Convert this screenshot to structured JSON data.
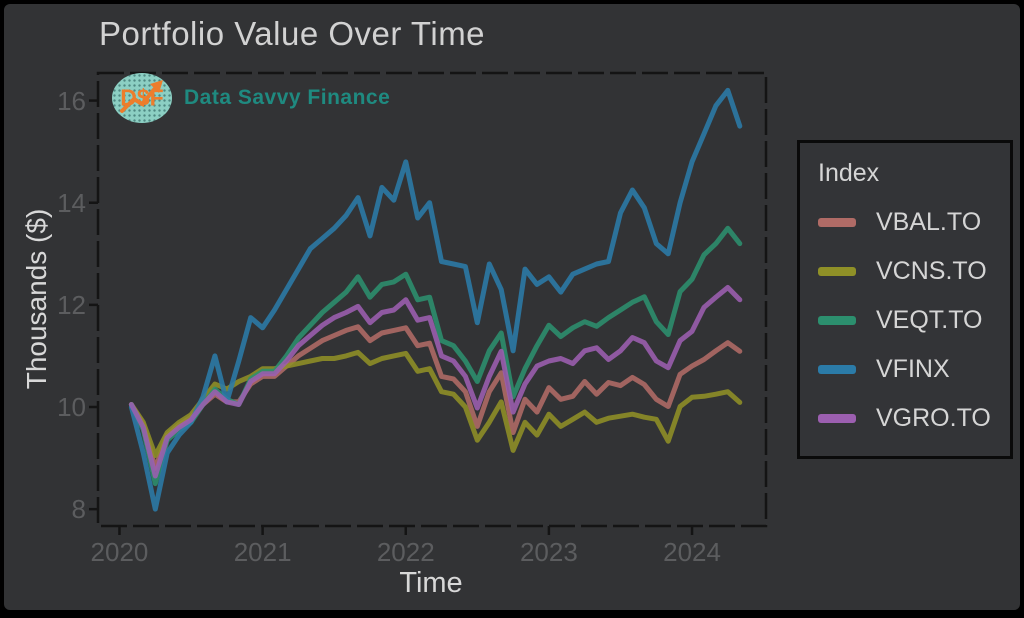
{
  "title": "Portfolio Value Over Time",
  "brand": {
    "monogram": "D$F",
    "name": "Data Savvy Finance",
    "monogram_color": "#ed7d2c",
    "name_color": "#1f8a80"
  },
  "legend": {
    "title": "Index"
  },
  "axes": {
    "x_label": "Time",
    "y_label": "Thousands ($)",
    "x_ticks": [
      "2020",
      "2021",
      "2022",
      "2023",
      "2024"
    ],
    "y_ticks": [
      "8",
      "10",
      "12",
      "14",
      "16"
    ]
  },
  "colors": {
    "background": "#323335",
    "title_text": "#d2d2d2",
    "axis_title_text": "#d8d8d8",
    "tick_text": "#5c5d5f",
    "plot_border": "#141414"
  },
  "chart_data": {
    "type": "line",
    "title": "Portfolio Value Over Time",
    "xlabel": "Time",
    "ylabel": "Thousands ($)",
    "legend_title": "Index",
    "legend_position": "right-outside",
    "grid": false,
    "units": "thousands of dollars",
    "x_tick_labels": [
      "2020",
      "2021",
      "2022",
      "2023",
      "2024"
    ],
    "y_tick_values": [
      8,
      10,
      12,
      14,
      16
    ],
    "ylim": [
      7.67,
      16.54
    ],
    "months": [
      "2020-01",
      "2020-02",
      "2020-03",
      "2020-04",
      "2020-05",
      "2020-06",
      "2020-07",
      "2020-08",
      "2020-09",
      "2020-10",
      "2020-11",
      "2020-12",
      "2021-01",
      "2021-02",
      "2021-03",
      "2021-04",
      "2021-05",
      "2021-06",
      "2021-07",
      "2021-08",
      "2021-09",
      "2021-10",
      "2021-11",
      "2021-12",
      "2022-01",
      "2022-02",
      "2022-03",
      "2022-04",
      "2022-05",
      "2022-06",
      "2022-07",
      "2022-08",
      "2022-09",
      "2022-10",
      "2022-11",
      "2022-12",
      "2023-01",
      "2023-02",
      "2023-03",
      "2023-04",
      "2023-05",
      "2023-06",
      "2023-07",
      "2023-08",
      "2023-09",
      "2023-10",
      "2023-11",
      "2023-12",
      "2024-01",
      "2024-02",
      "2024-03",
      "2024-04"
    ],
    "series": [
      {
        "name": "VBAL.TO",
        "color": "#b06b66",
        "values": [
          10.05,
          9.65,
          8.8,
          9.45,
          9.65,
          9.8,
          10.05,
          10.25,
          10.1,
          10.1,
          10.45,
          10.6,
          10.6,
          10.8,
          11.0,
          11.15,
          11.3,
          11.4,
          11.5,
          11.57,
          11.3,
          11.45,
          11.5,
          11.55,
          11.2,
          11.25,
          10.6,
          10.55,
          10.3,
          9.62,
          10.3,
          10.67,
          9.5,
          10.15,
          9.9,
          10.38,
          10.15,
          10.21,
          10.5,
          10.25,
          10.48,
          10.42,
          10.58,
          10.44,
          10.15,
          10.01,
          10.64,
          10.8,
          10.93,
          11.1,
          11.26,
          11.09
        ]
      },
      {
        "name": "VCNS.TO",
        "color": "#8f9027",
        "values": [
          10.05,
          9.7,
          9.05,
          9.5,
          9.7,
          9.85,
          10.15,
          10.45,
          10.35,
          10.5,
          10.6,
          10.75,
          10.75,
          10.8,
          10.85,
          10.9,
          10.95,
          10.95,
          11.0,
          11.07,
          10.85,
          10.95,
          11.0,
          11.05,
          10.7,
          10.75,
          10.3,
          10.25,
          10.0,
          9.35,
          9.7,
          10.1,
          9.15,
          9.7,
          9.45,
          9.86,
          9.62,
          9.76,
          9.9,
          9.7,
          9.78,
          9.82,
          9.86,
          9.8,
          9.76,
          9.33,
          10.01,
          10.19,
          10.21,
          10.25,
          10.3,
          10.09
        ]
      },
      {
        "name": "VEQT.TO",
        "color": "#2c8f6e",
        "values": [
          10.05,
          9.55,
          8.5,
          9.35,
          9.55,
          9.7,
          10.05,
          10.35,
          10.15,
          10.05,
          10.55,
          10.7,
          10.7,
          11.0,
          11.35,
          11.6,
          11.85,
          12.05,
          12.25,
          12.55,
          12.15,
          12.4,
          12.45,
          12.6,
          12.1,
          12.15,
          11.3,
          11.2,
          10.9,
          10.5,
          11.1,
          11.45,
          10.2,
          10.75,
          11.2,
          11.6,
          11.38,
          11.55,
          11.67,
          11.58,
          11.75,
          11.9,
          12.05,
          12.16,
          11.67,
          11.42,
          12.26,
          12.5,
          12.98,
          13.2,
          13.5,
          13.2
        ]
      },
      {
        "name": "VFINX",
        "color": "#2b7ba8",
        "values": [
          10.0,
          9.1,
          8.0,
          9.1,
          9.45,
          9.7,
          10.2,
          11.0,
          10.1,
          10.9,
          11.75,
          11.55,
          11.9,
          12.3,
          12.7,
          13.1,
          13.3,
          13.5,
          13.75,
          14.1,
          13.35,
          14.3,
          14.05,
          14.8,
          13.7,
          14.0,
          12.85,
          12.8,
          12.75,
          11.65,
          12.8,
          12.3,
          11.1,
          12.7,
          12.4,
          12.55,
          12.25,
          12.6,
          12.7,
          12.8,
          12.85,
          13.8,
          14.25,
          13.9,
          13.2,
          13.0,
          14.0,
          14.8,
          15.35,
          15.9,
          16.2,
          15.5
        ]
      },
      {
        "name": "VGRO.TO",
        "color": "#9c5fb0",
        "values": [
          10.05,
          9.6,
          8.65,
          9.4,
          9.6,
          9.75,
          10.05,
          10.3,
          10.1,
          10.05,
          10.5,
          10.65,
          10.65,
          10.9,
          11.2,
          11.4,
          11.6,
          11.75,
          11.85,
          11.97,
          11.65,
          11.85,
          11.9,
          12.1,
          11.7,
          11.75,
          11.0,
          10.9,
          10.6,
          9.98,
          10.6,
          11.09,
          9.9,
          10.45,
          10.8,
          10.9,
          10.95,
          10.85,
          11.1,
          11.16,
          10.93,
          11.1,
          11.36,
          11.26,
          10.9,
          10.77,
          11.3,
          11.48,
          11.95,
          12.15,
          12.34,
          12.1
        ]
      }
    ]
  }
}
